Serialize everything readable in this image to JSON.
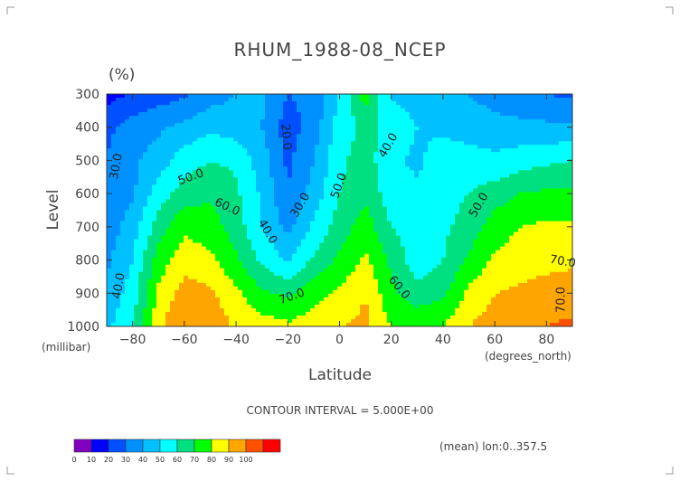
{
  "chart_data": {
    "type": "heatmap",
    "title": "RHUM_1988-08_NCEP",
    "unit": "(%)",
    "xlabel": "Latitude",
    "ylabel": "Level",
    "x_unit": "(degrees_north)",
    "y_unit": "(millibar)",
    "xlim": [
      -90,
      90
    ],
    "ylim": [
      1000,
      300
    ],
    "x_ticks": [
      -80,
      -60,
      -40,
      -20,
      0,
      20,
      40,
      60,
      80
    ],
    "y_ticks": [
      300,
      400,
      500,
      600,
      700,
      800,
      900,
      1000
    ],
    "x": [
      -90,
      -80,
      -70,
      -60,
      -50,
      -40,
      -30,
      -20,
      -10,
      0,
      10,
      20,
      30,
      40,
      50,
      60,
      70,
      80,
      90
    ],
    "y": [
      300,
      400,
      500,
      600,
      700,
      800,
      900,
      1000
    ],
    "z": [
      [
        5,
        12,
        15,
        18,
        25,
        30,
        32,
        20,
        22,
        40,
        65,
        38,
        35,
        36,
        30,
        25,
        22,
        20,
        18
      ],
      [
        18,
        24,
        28,
        33,
        38,
        35,
        30,
        15,
        25,
        45,
        52,
        48,
        40,
        38,
        36,
        34,
        33,
        32,
        32
      ],
      [
        20,
        28,
        35,
        45,
        50,
        48,
        35,
        18,
        30,
        48,
        55,
        42,
        38,
        45,
        44,
        42,
        45,
        48,
        50
      ],
      [
        22,
        28,
        45,
        55,
        58,
        52,
        38,
        20,
        34,
        50,
        58,
        44,
        42,
        46,
        50,
        55,
        60,
        62,
        62
      ],
      [
        24,
        35,
        55,
        68,
        65,
        55,
        40,
        27,
        42,
        55,
        65,
        50,
        44,
        48,
        54,
        65,
        70,
        72,
        72
      ],
      [
        28,
        40,
        65,
        75,
        72,
        62,
        48,
        38,
        52,
        62,
        72,
        58,
        44,
        50,
        62,
        72,
        75,
        77,
        78
      ],
      [
        32,
        45,
        72,
        85,
        82,
        72,
        62,
        58,
        66,
        72,
        80,
        62,
        54,
        58,
        72,
        80,
        82,
        84,
        85
      ],
      [
        38,
        48,
        78,
        90,
        88,
        78,
        75,
        72,
        75,
        80,
        82,
        70,
        68,
        70,
        80,
        85,
        88,
        90,
        92
      ]
    ],
    "levels": [
      0,
      10,
      20,
      30,
      40,
      50,
      60,
      70,
      80,
      90,
      100
    ],
    "colors": [
      "#8000c0",
      "#0000ff",
      "#0050ff",
      "#0090ff",
      "#00c0ff",
      "#00ffff",
      "#00e080",
      "#00ff00",
      "#ffff00",
      "#ffa500",
      "#ff5000",
      "#ff0000"
    ],
    "contour_labels": [
      "30.0",
      "40.0",
      "50.0",
      "60.0",
      "70.0",
      "20.0",
      "30.0",
      "40.0",
      "50.0",
      "40.0",
      "50.0",
      "70.0",
      "60.0",
      "70.0"
    ],
    "colorbar_ticks": [
      "0",
      "10",
      "20",
      "30",
      "40",
      "50",
      "60",
      "70",
      "80",
      "90",
      "100"
    ],
    "contour_interval": "CONTOUR INTERVAL = 5.000E+00",
    "footer_note": "(mean) lon:0..357.5"
  }
}
